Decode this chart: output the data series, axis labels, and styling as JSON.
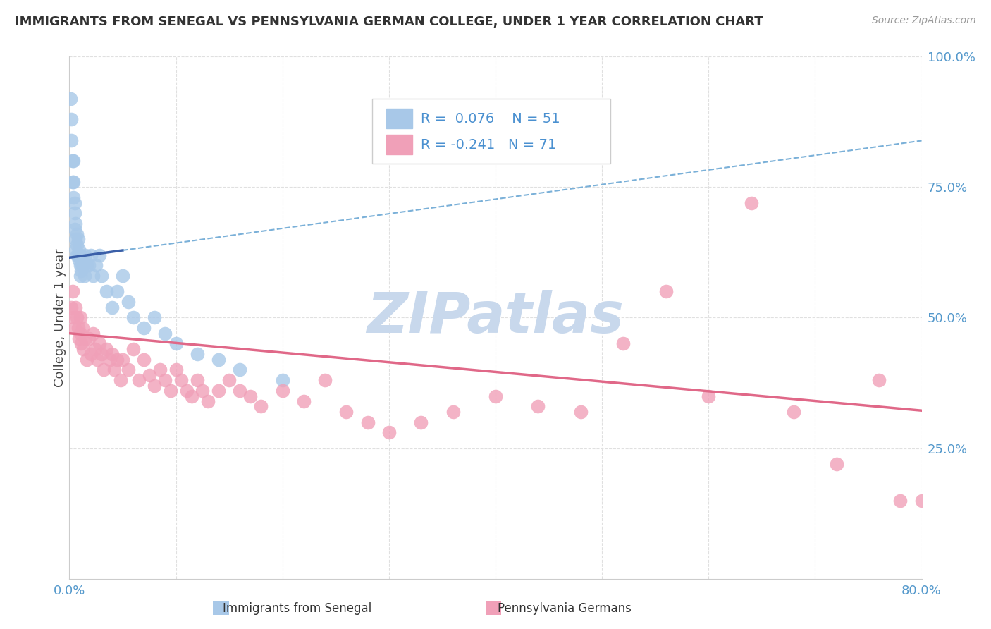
{
  "title": "IMMIGRANTS FROM SENEGAL VS PENNSYLVANIA GERMAN COLLEGE, UNDER 1 YEAR CORRELATION CHART",
  "source": "Source: ZipAtlas.com",
  "ylabel": "College, Under 1 year",
  "legend_label1": "Immigrants from Senegal",
  "legend_label2": "Pennsylvania Germans",
  "R1": 0.076,
  "N1": 51,
  "R2": -0.241,
  "N2": 71,
  "xlim": [
    0.0,
    0.8
  ],
  "ylim": [
    0.0,
    1.0
  ],
  "yticks": [
    0.0,
    0.25,
    0.5,
    0.75,
    1.0
  ],
  "yticklabels": [
    "",
    "25.0%",
    "50.0%",
    "75.0%",
    "100.0%"
  ],
  "color_blue": "#a8c8e8",
  "color_blue_line_solid": "#3a5fa8",
  "color_blue_line_dashed": "#7ab0d8",
  "color_pink": "#f0a0b8",
  "color_pink_line": "#e06888",
  "color_title": "#333333",
  "color_source": "#999999",
  "color_r_value": "#4a90d0",
  "color_watermark": "#c8d8ec",
  "background_color": "#ffffff",
  "grid_color": "#e0e0e0",
  "blue_x": [
    0.001,
    0.002,
    0.002,
    0.003,
    0.003,
    0.004,
    0.004,
    0.004,
    0.005,
    0.005,
    0.005,
    0.006,
    0.006,
    0.006,
    0.007,
    0.007,
    0.007,
    0.008,
    0.008,
    0.009,
    0.009,
    0.01,
    0.01,
    0.01,
    0.011,
    0.011,
    0.012,
    0.013,
    0.014,
    0.015,
    0.016,
    0.018,
    0.02,
    0.022,
    0.025,
    0.028,
    0.03,
    0.035,
    0.04,
    0.045,
    0.05,
    0.055,
    0.06,
    0.07,
    0.08,
    0.09,
    0.1,
    0.12,
    0.14,
    0.16,
    0.2
  ],
  "blue_y": [
    0.92,
    0.88,
    0.84,
    0.8,
    0.76,
    0.8,
    0.76,
    0.73,
    0.72,
    0.7,
    0.67,
    0.68,
    0.65,
    0.63,
    0.66,
    0.64,
    0.62,
    0.65,
    0.62,
    0.63,
    0.61,
    0.62,
    0.6,
    0.58,
    0.61,
    0.59,
    0.6,
    0.6,
    0.58,
    0.62,
    0.6,
    0.6,
    0.62,
    0.58,
    0.6,
    0.62,
    0.58,
    0.55,
    0.52,
    0.55,
    0.58,
    0.53,
    0.5,
    0.48,
    0.5,
    0.47,
    0.45,
    0.43,
    0.42,
    0.4,
    0.38
  ],
  "pink_x": [
    0.002,
    0.003,
    0.004,
    0.005,
    0.006,
    0.007,
    0.008,
    0.009,
    0.01,
    0.01,
    0.011,
    0.012,
    0.013,
    0.015,
    0.016,
    0.018,
    0.02,
    0.022,
    0.024,
    0.026,
    0.028,
    0.03,
    0.032,
    0.035,
    0.038,
    0.04,
    0.042,
    0.045,
    0.048,
    0.05,
    0.055,
    0.06,
    0.065,
    0.07,
    0.075,
    0.08,
    0.085,
    0.09,
    0.095,
    0.1,
    0.105,
    0.11,
    0.115,
    0.12,
    0.125,
    0.13,
    0.14,
    0.15,
    0.16,
    0.17,
    0.18,
    0.2,
    0.22,
    0.24,
    0.26,
    0.28,
    0.3,
    0.33,
    0.36,
    0.4,
    0.44,
    0.48,
    0.52,
    0.56,
    0.6,
    0.64,
    0.68,
    0.72,
    0.76,
    0.78,
    0.8
  ],
  "pink_y": [
    0.52,
    0.55,
    0.5,
    0.48,
    0.52,
    0.5,
    0.48,
    0.46,
    0.5,
    0.47,
    0.45,
    0.48,
    0.44,
    0.46,
    0.42,
    0.46,
    0.43,
    0.47,
    0.44,
    0.42,
    0.45,
    0.43,
    0.4,
    0.44,
    0.42,
    0.43,
    0.4,
    0.42,
    0.38,
    0.42,
    0.4,
    0.44,
    0.38,
    0.42,
    0.39,
    0.37,
    0.4,
    0.38,
    0.36,
    0.4,
    0.38,
    0.36,
    0.35,
    0.38,
    0.36,
    0.34,
    0.36,
    0.38,
    0.36,
    0.35,
    0.33,
    0.36,
    0.34,
    0.38,
    0.32,
    0.3,
    0.28,
    0.3,
    0.32,
    0.35,
    0.33,
    0.32,
    0.45,
    0.55,
    0.35,
    0.72,
    0.32,
    0.22,
    0.38,
    0.15,
    0.15
  ],
  "blue_line_intercept": 0.615,
  "blue_line_slope": 0.28,
  "pink_line_intercept": 0.47,
  "pink_line_slope": -0.185
}
